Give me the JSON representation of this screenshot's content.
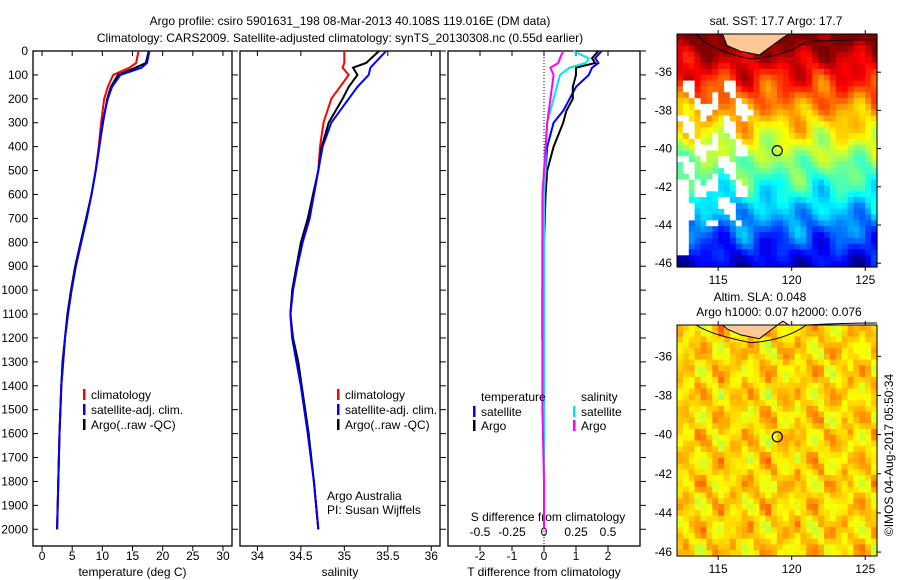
{
  "title_line1": "Argo profile: csiro 5901631_198 08-Mar-2013 40.108S 119.016E (DM data)",
  "title_line2": "Climatology: CARS2009. Satellite-adjusted climatology: synTS_20130308.nc (0.55d earlier)",
  "colors": {
    "climatology": "#ff0000",
    "satellite": "#0000ff",
    "argo": "#000000",
    "s_satellite": "#00e5ee",
    "s_argo": "#ff00ff",
    "land": "#fcc896"
  },
  "chart_data": [
    {
      "type": "line",
      "id": "temperature",
      "xlabel": "temperature (deg C)",
      "ylabel": "depth",
      "xlim": [
        -1.5,
        31.5
      ],
      "ylim": [
        2070,
        0
      ],
      "xticks": [
        0,
        5,
        10,
        15,
        20,
        25,
        30
      ],
      "yticks": [
        0,
        100,
        200,
        300,
        400,
        500,
        600,
        700,
        800,
        900,
        1000,
        1100,
        1200,
        1300,
        1400,
        1500,
        1600,
        1700,
        1800,
        1900,
        2000
      ],
      "depth": [
        0,
        50,
        70,
        100,
        150,
        200,
        300,
        400,
        500,
        600,
        700,
        800,
        900,
        1000,
        1100,
        1200,
        1300,
        1400,
        1600,
        1800,
        2000
      ],
      "series": [
        {
          "name": "climatology",
          "values": [
            16.0,
            15.6,
            14.5,
            11.8,
            10.9,
            10.3,
            9.8,
            9.4,
            8.9,
            8.2,
            7.4,
            6.5,
            5.6,
            4.9,
            4.3,
            3.8,
            3.5,
            3.2,
            2.9,
            2.7,
            2.5
          ]
        },
        {
          "name": "satellite-adj. clim.",
          "values": [
            17.8,
            17.4,
            16.5,
            13.0,
            11.6,
            10.9,
            10.0,
            9.5,
            8.9,
            8.2,
            7.4,
            6.5,
            5.6,
            4.9,
            4.3,
            3.8,
            3.5,
            3.2,
            2.9,
            2.7,
            2.5
          ]
        },
        {
          "name": "Argo(..raw -QC)",
          "values": [
            17.7,
            17.2,
            15.5,
            12.6,
            11.4,
            10.8,
            10.1,
            9.5,
            8.9,
            8.2,
            7.3,
            6.4,
            5.5,
            4.8,
            4.2,
            3.8,
            3.4,
            3.2,
            2.9,
            2.7,
            2.5
          ]
        }
      ],
      "legend": [
        "climatology",
        "satellite-adj. clim.",
        "Argo(..raw -QC)"
      ]
    },
    {
      "type": "line",
      "id": "salinity",
      "xlabel": "salinity",
      "xlim": [
        33.8,
        36.1
      ],
      "ylim": [
        2070,
        0
      ],
      "xticks": [
        34,
        34.5,
        35,
        35.5,
        36
      ],
      "depth": [
        0,
        50,
        70,
        100,
        150,
        200,
        300,
        400,
        500,
        600,
        700,
        800,
        900,
        1000,
        1100,
        1200,
        1300,
        1400,
        1600,
        1800,
        2000
      ],
      "series": [
        {
          "name": "climatology",
          "values": [
            35.0,
            35.0,
            34.98,
            35.05,
            34.95,
            34.85,
            34.76,
            34.72,
            34.7,
            34.65,
            34.6,
            34.52,
            34.46,
            34.41,
            34.38,
            34.4,
            34.45,
            34.5,
            34.58,
            34.65,
            34.7
          ]
        },
        {
          "name": "satellite-adj. clim.",
          "values": [
            35.48,
            35.35,
            35.3,
            35.28,
            35.15,
            35.05,
            34.85,
            34.75,
            34.7,
            34.65,
            34.6,
            34.52,
            34.46,
            34.41,
            34.38,
            34.4,
            34.45,
            34.5,
            34.58,
            34.65,
            34.7
          ]
        },
        {
          "name": "Argo(..raw -QC)",
          "values": [
            35.4,
            35.25,
            35.1,
            35.15,
            35.05,
            34.98,
            34.82,
            34.74,
            34.7,
            34.64,
            34.58,
            34.5,
            34.45,
            34.4,
            34.38,
            34.41,
            34.47,
            34.51,
            34.59,
            34.65,
            34.7
          ]
        }
      ],
      "legend": [
        "climatology",
        "satellite-adj. clim.",
        "Argo(..raw -QC)"
      ],
      "annotation": [
        "Argo Australia",
        "PI: Susan Wijffels"
      ]
    },
    {
      "type": "line",
      "id": "difference",
      "xlabel": "T difference from climatology",
      "xlabel_top": "S difference from climatology",
      "xlim": [
        -3,
        3
      ],
      "ylim": [
        2070,
        0
      ],
      "xticks": [
        -2,
        -1,
        0,
        1,
        2
      ],
      "xticks_s": [
        -0.5,
        -0.25,
        0,
        0.25,
        0.5
      ],
      "depth": [
        0,
        30,
        50,
        70,
        100,
        150,
        200,
        250,
        300,
        400,
        500,
        600,
        800,
        1000,
        1200,
        1500,
        1800,
        2000
      ],
      "series": [
        {
          "name": "temperature satellite",
          "values": [
            1.8,
            1.6,
            1.7,
            1.5,
            1.4,
            1.0,
            0.8,
            0.6,
            0.3,
            0.1,
            0.05,
            0.0,
            -0.05,
            -0.05,
            -0.05,
            0.0,
            0.0,
            0.0
          ]
        },
        {
          "name": "temperature Argo",
          "values": [
            1.7,
            1.5,
            1.6,
            1.0,
            1.0,
            0.9,
            0.9,
            0.7,
            0.6,
            0.3,
            0.1,
            0.05,
            0.0,
            -0.05,
            -0.05,
            0.0,
            0.0,
            0.0
          ]
        },
        {
          "name": "salinity satellite",
          "values": [
            0.9,
            1.4,
            1.3,
            0.8,
            0.5,
            0.4,
            0.3,
            0.2,
            0.1,
            0.05,
            0.05,
            0.0,
            0.0,
            0.0,
            0.0,
            0.0,
            0.0,
            0.0
          ]
        },
        {
          "name": "salinity Argo",
          "values": [
            0.6,
            0.5,
            0.45,
            0.2,
            0.3,
            0.25,
            0.2,
            0.15,
            0.1,
            0.05,
            0.0,
            -0.05,
            -0.05,
            -0.05,
            -0.05,
            -0.05,
            0.0,
            0.0
          ]
        }
      ],
      "legend_headers": [
        "temperature",
        "salinity"
      ],
      "legend": [
        "satellite",
        "Argo",
        "satellite",
        "Argo"
      ]
    },
    {
      "type": "heatmap",
      "id": "sst_map",
      "title": "sat. SST: 17.7 Argo: 17.7",
      "xlim": [
        112.2,
        125.8
      ],
      "ylim": [
        -46.2,
        -34.0
      ],
      "xticks": [
        115,
        120,
        125
      ],
      "yticks": [
        -36,
        -38,
        -40,
        -42,
        -44,
        -46
      ],
      "marker": {
        "lon": 119.016,
        "lat": -40.108
      }
    },
    {
      "type": "heatmap",
      "id": "sla_map",
      "title_line1": "Altim. SLA: 0.048",
      "title_line2": "Argo h1000: 0.07 h2000: 0.076",
      "xlim": [
        112.2,
        125.8
      ],
      "ylim": [
        -46.2,
        -34.4
      ],
      "xticks": [
        115,
        120,
        125
      ],
      "yticks": [
        -36,
        -38,
        -40,
        -42,
        -44,
        -46
      ],
      "marker": {
        "lon": 119.016,
        "lat": -40.108
      }
    }
  ],
  "credit": "©IMOS 04-Aug-2017 05:50:34"
}
